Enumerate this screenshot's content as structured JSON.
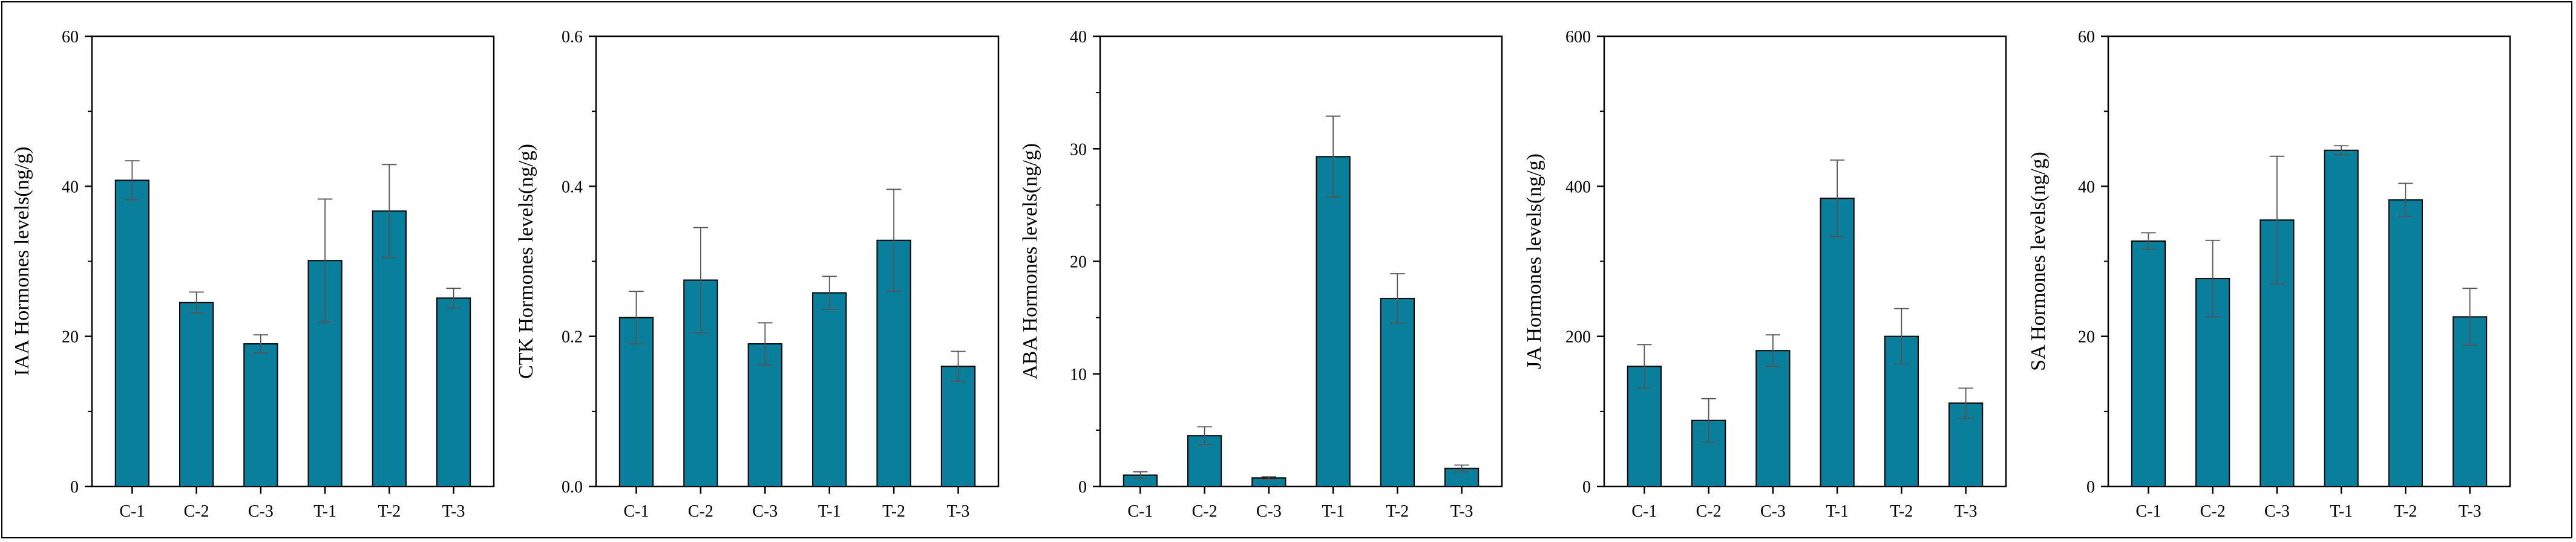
{
  "colors": {
    "bar": "#0a7f9c",
    "axis": "#000000",
    "error": "#555555"
  },
  "chart_data": [
    {
      "type": "bar",
      "categories": [
        "C-1",
        "C-2",
        "C-3",
        "T-1",
        "T-2",
        "T-3"
      ],
      "values": [
        40.8,
        24.5,
        19.0,
        30.1,
        36.7,
        25.1
      ],
      "errors": [
        2.6,
        1.4,
        1.2,
        8.2,
        6.2,
        1.3
      ],
      "ylabel": "IAA Hormones levels(ng/g)",
      "ylim": [
        0,
        60
      ],
      "yticks": [
        0,
        20,
        40,
        60
      ],
      "ytick_labels": [
        "0",
        "20",
        "40",
        "60"
      ],
      "xlabel": ""
    },
    {
      "type": "bar",
      "categories": [
        "C-1",
        "C-2",
        "C-3",
        "T-1",
        "T-2",
        "T-3"
      ],
      "values": [
        0.225,
        0.275,
        0.19,
        0.258,
        0.328,
        0.16
      ],
      "errors": [
        0.035,
        0.07,
        0.028,
        0.022,
        0.068,
        0.02
      ],
      "ylabel": "CTK Hormones levels(ng/g)",
      "ylim": [
        0,
        0.6
      ],
      "yticks": [
        0,
        0.2,
        0.4,
        0.6
      ],
      "ytick_labels": [
        "0.0",
        "0.2",
        "0.4",
        "0.6"
      ],
      "xlabel": ""
    },
    {
      "type": "bar",
      "categories": [
        "C-1",
        "C-2",
        "C-3",
        "T-1",
        "T-2",
        "T-3"
      ],
      "values": [
        1.0,
        4.5,
        0.75,
        29.3,
        16.7,
        1.6
      ],
      "errors": [
        0.3,
        0.8,
        0.1,
        3.6,
        2.2,
        0.3
      ],
      "ylabel": "ABA Hormones levels(ng/g)",
      "ylim": [
        0,
        40
      ],
      "yticks": [
        0,
        10,
        20,
        30,
        40
      ],
      "ytick_labels": [
        "0",
        "10",
        "20",
        "30",
        "40"
      ],
      "xlabel": ""
    },
    {
      "type": "bar",
      "categories": [
        "C-1",
        "C-2",
        "C-3",
        "T-1",
        "T-2",
        "T-3"
      ],
      "values": [
        160,
        88,
        181,
        384,
        200,
        111
      ],
      "errors": [
        29,
        29,
        21,
        51,
        37,
        20
      ],
      "ylabel": "JA Hormones levels(ng/g)",
      "ylim": [
        0,
        600
      ],
      "yticks": [
        0,
        200,
        400,
        600
      ],
      "ytick_labels": [
        "0",
        "200",
        "400",
        "600"
      ],
      "xlabel": ""
    },
    {
      "type": "bar",
      "categories": [
        "C-1",
        "C-2",
        "C-3",
        "T-1",
        "T-2",
        "T-3"
      ],
      "values": [
        32.7,
        27.7,
        35.5,
        44.8,
        38.2,
        22.6
      ],
      "errors": [
        1.1,
        5.1,
        8.5,
        0.6,
        2.2,
        3.8
      ],
      "ylabel": "SA Hormones levels(ng/g)",
      "ylim": [
        0,
        60
      ],
      "yticks": [
        0,
        20,
        40,
        60
      ],
      "ytick_labels": [
        "0",
        "20",
        "40",
        "60"
      ],
      "xlabel": ""
    }
  ]
}
